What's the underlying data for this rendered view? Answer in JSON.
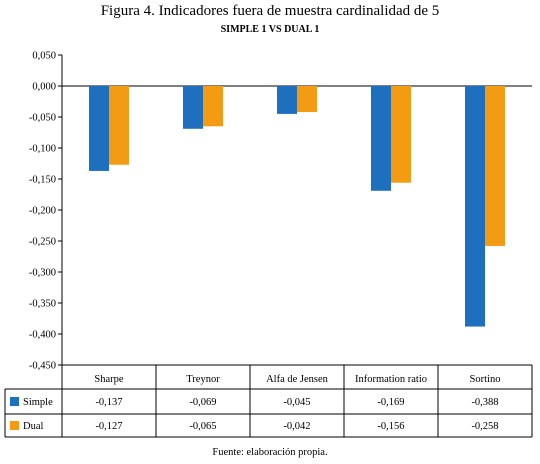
{
  "title": "Figura 4. Indicadores fuera de muestra cardinalidad de 5",
  "subtitle": "SIMPLE 1 VS DUAL 1",
  "source": "Fuente: elaboración propia.",
  "colors": {
    "simple": "#1F6FBF",
    "dual": "#F39B12"
  },
  "chart_data": {
    "type": "bar",
    "categories": [
      "Sharpe",
      "Treynor",
      "Alfa de Jensen",
      "Information ratio",
      "Sortino"
    ],
    "series": [
      {
        "name": "Simple",
        "values": [
          -0.137,
          -0.069,
          -0.045,
          -0.169,
          -0.388
        ],
        "labels": [
          "-0,137",
          "-0,069",
          "-0,045",
          "-0,169",
          "-0,388"
        ]
      },
      {
        "name": "Dual",
        "values": [
          -0.127,
          -0.065,
          -0.042,
          -0.156,
          -0.258
        ],
        "labels": [
          "-0,127",
          "-0,065",
          "-0,042",
          "-0,156",
          "-0,258"
        ]
      }
    ],
    "ylim": [
      -0.45,
      0.05
    ],
    "yticks": [
      0.05,
      0.0,
      -0.05,
      -0.1,
      -0.15,
      -0.2,
      -0.25,
      -0.3,
      -0.35,
      -0.4,
      -0.45
    ],
    "ytick_labels": [
      "0,050",
      "0,000",
      "-0,050",
      "-0,100",
      "-0,150",
      "-0,200",
      "-0,250",
      "-0,300",
      "-0,350",
      "-0,400",
      "-0,450"
    ],
    "grid": false,
    "legend": "data table"
  }
}
